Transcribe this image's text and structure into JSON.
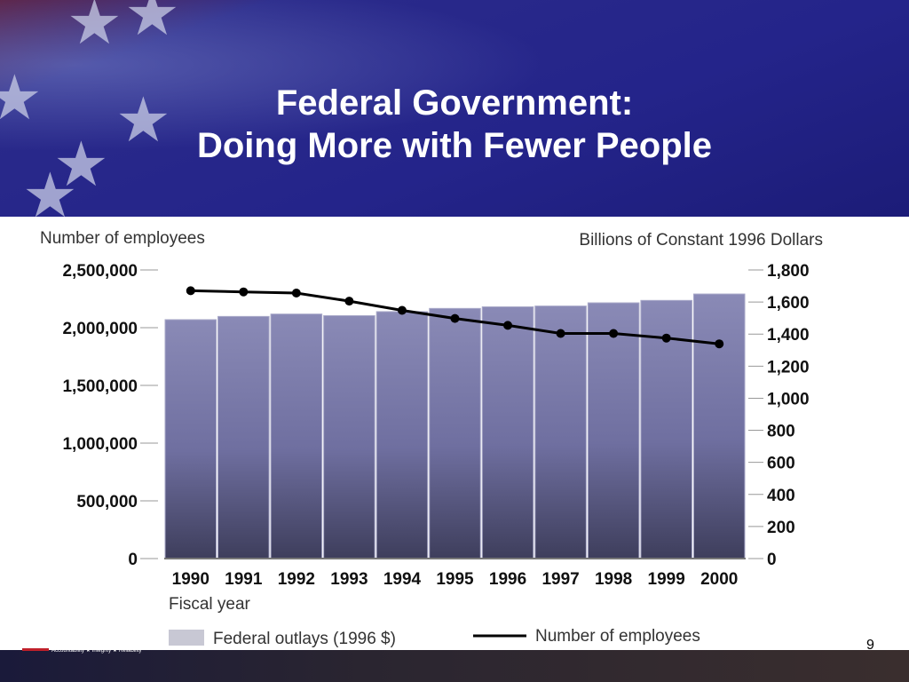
{
  "slide": {
    "title_line1": "Federal Government:",
    "title_line2": "Doing More with Fewer People",
    "footer_tagline": "Accountability ★ Integrity ★ Reliability",
    "page_number": "9"
  },
  "chart_data": {
    "type": "bar",
    "subtype": "bar+line dual axis",
    "title": "",
    "categories": [
      "1990",
      "1991",
      "1992",
      "1993",
      "1994",
      "1995",
      "1996",
      "1997",
      "1998",
      "1999",
      "2000"
    ],
    "xlabel": "Fiscal year",
    "y_left_label": "Number of employees",
    "y_left_lim": [
      0,
      2500000
    ],
    "y_left_ticks": [
      "0",
      "500,000",
      "1,000,000",
      "1,500,000",
      "2,000,000",
      "2,500,000"
    ],
    "y_right_label": "Billions of Constant 1996 Dollars",
    "y_right_lim": [
      0,
      1800
    ],
    "y_right_ticks": [
      "0",
      "200",
      "400",
      "600",
      "800",
      "1,000",
      "1,200",
      "1,400",
      "1,600",
      "1,800"
    ],
    "series": [
      {
        "name": "Federal outlays (1996 $)",
        "type": "bar",
        "axis": "right",
        "values": [
          1490,
          1510,
          1525,
          1515,
          1540,
          1560,
          1570,
          1575,
          1595,
          1610,
          1650
        ],
        "color": "#8c8cb8"
      },
      {
        "name": "Number of employees",
        "type": "line",
        "axis": "left",
        "values": [
          2320000,
          2310000,
          2300000,
          2230000,
          2150000,
          2080000,
          2020000,
          1950000,
          1950000,
          1910000,
          1860000
        ],
        "color": "#000000"
      }
    ],
    "legend": {
      "placement": "bottom",
      "bar_label": "Federal outlays (1996 $)",
      "line_label": "Number of employees"
    },
    "grid": false
  }
}
